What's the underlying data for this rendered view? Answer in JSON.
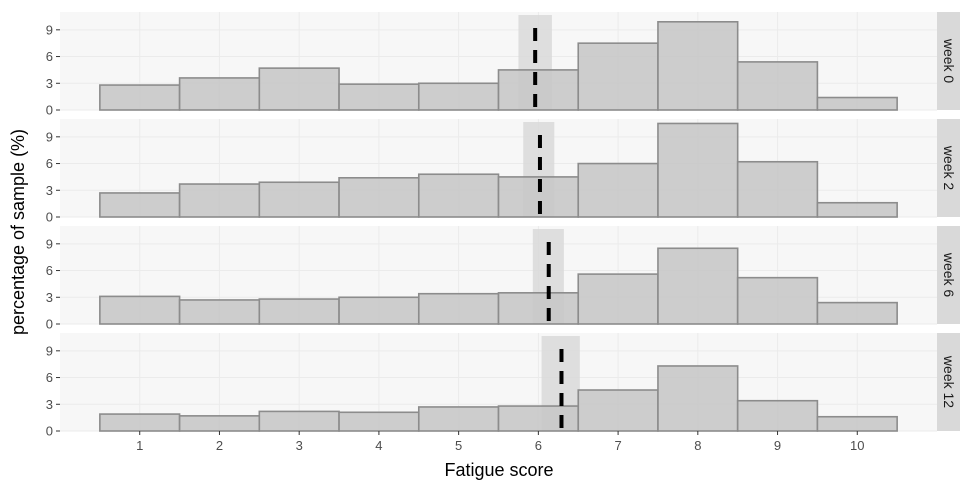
{
  "chart_data": {
    "type": "bar",
    "xlabel": "Fatigue score",
    "ylabel": "percentage of sample (%)",
    "x": [
      1,
      2,
      3,
      4,
      5,
      6,
      7,
      8,
      9,
      10
    ],
    "x_ticks": [
      "1",
      "2",
      "3",
      "4",
      "5",
      "6",
      "7",
      "8",
      "9",
      "10"
    ],
    "y_ticks": [
      "0",
      "3",
      "6",
      "9"
    ],
    "xlim": [
      0,
      11
    ],
    "ylim": [
      0,
      11
    ],
    "grid": true,
    "legend": "none",
    "panels": [
      {
        "strip": "week 0",
        "values": [
          2.8,
          3.6,
          4.7,
          2.9,
          3.0,
          4.5,
          7.5,
          9.9,
          5.4,
          1.4
        ],
        "mean": 5.96,
        "ci": [
          5.75,
          6.17
        ]
      },
      {
        "strip": "week 2",
        "values": [
          2.7,
          3.7,
          3.9,
          4.4,
          4.8,
          4.5,
          6.0,
          10.5,
          6.2,
          1.6
        ],
        "mean": 6.02,
        "ci": [
          5.81,
          6.2
        ]
      },
      {
        "strip": "week 6",
        "values": [
          3.1,
          2.7,
          2.8,
          3.0,
          3.4,
          3.5,
          5.6,
          8.5,
          5.2,
          2.4
        ],
        "mean": 6.13,
        "ci": [
          5.93,
          6.32
        ]
      },
      {
        "strip": "week 12",
        "values": [
          1.9,
          1.7,
          2.2,
          2.1,
          2.7,
          2.8,
          4.6,
          7.3,
          3.4,
          1.6
        ],
        "mean": 6.29,
        "ci": [
          6.04,
          6.52
        ]
      }
    ],
    "colors": {
      "bar_fill": "#c8c8c8",
      "bar_stroke": "#8c8c8c",
      "ci_band": "#d9d9d9",
      "panel_bg": "#f7f7f7",
      "grid": "#ebebeb",
      "strip_bg": "#d9d9d9",
      "mean_line": "#000000"
    }
  }
}
